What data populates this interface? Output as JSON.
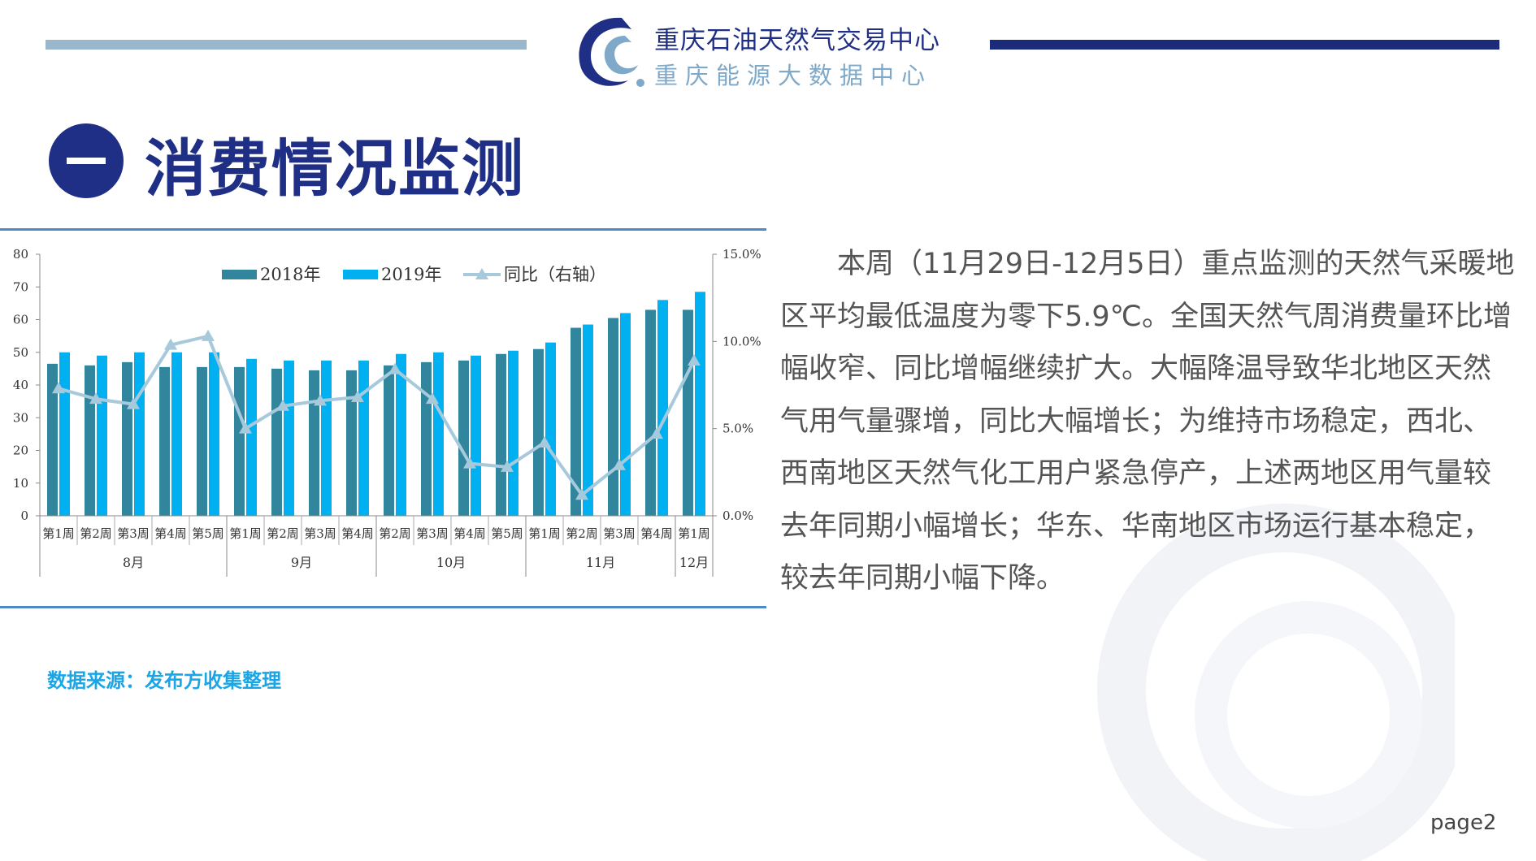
{
  "header": {
    "org_name": "重庆石油天然气交易中心",
    "sub_name": "重庆能源大数据中心"
  },
  "section": {
    "badge": "一",
    "title": "消费情况监测"
  },
  "chart_data": {
    "type": "bar",
    "categories": [
      "第1周",
      "第2周",
      "第3周",
      "第4周",
      "第5周",
      "第1周",
      "第2周",
      "第3周",
      "第4周",
      "第2周",
      "第3周",
      "第4周",
      "第5周",
      "第1周",
      "第2周",
      "第3周",
      "第4周",
      "第1周"
    ],
    "month_groups": [
      {
        "label": "8月",
        "count": 5
      },
      {
        "label": "9月",
        "count": 4
      },
      {
        "label": "10月",
        "count": 4
      },
      {
        "label": "11月",
        "count": 4
      },
      {
        "label": "12月",
        "count": 1
      }
    ],
    "series": [
      {
        "name": "2018年",
        "type": "bar",
        "axis": "left",
        "color": "#31859c",
        "values": [
          46.5,
          46,
          47,
          45.5,
          45.5,
          45.5,
          45,
          44.5,
          44.5,
          46,
          47,
          47.5,
          49.5,
          51,
          57.5,
          60.5,
          63,
          63
        ]
      },
      {
        "name": "2019年",
        "type": "bar",
        "axis": "left",
        "color": "#00b0f0",
        "values": [
          50,
          49,
          50,
          50,
          50,
          48,
          47.5,
          47.5,
          47.5,
          49.5,
          50,
          49,
          50.5,
          53,
          58.5,
          62,
          66,
          68.5
        ]
      },
      {
        "name": "同比（右轴）",
        "type": "line",
        "axis": "right",
        "color": "#a6c9db",
        "values": [
          7.3,
          6.7,
          6.4,
          9.8,
          10.3,
          5.0,
          6.3,
          6.6,
          6.8,
          8.4,
          6.7,
          3.0,
          2.8,
          4.2,
          1.2,
          2.9,
          4.7,
          8.9
        ]
      }
    ],
    "ylim": [
      0,
      80
    ],
    "yticks": [
      "80",
      "70",
      "60",
      "50",
      "40",
      "30",
      "20",
      "10",
      "0"
    ],
    "y2lim": [
      0,
      15
    ],
    "y2ticks": [
      "15.0%",
      "10.0%",
      "5.0%",
      "0.0%"
    ],
    "legend_position": "top-center"
  },
  "paragraph": "本周（11月29日-12月5日）重点监测的天然气采暖地区平均最低温度为零下5.9℃。全国天然气周消费量环比增幅收窄、同比增幅继续扩大。大幅降温导致华北地区天然气用气量骤增，同比大幅增长；为维持市场稳定，西北、西南地区天然气化工用户紧急停产，上述两地区用气量较去年同期小幅增长；华东、华南地区市场运行基本稳定，较去年同期小幅下降。",
  "source_note": "数据来源：发布方收集整理",
  "page_label": "page2"
}
